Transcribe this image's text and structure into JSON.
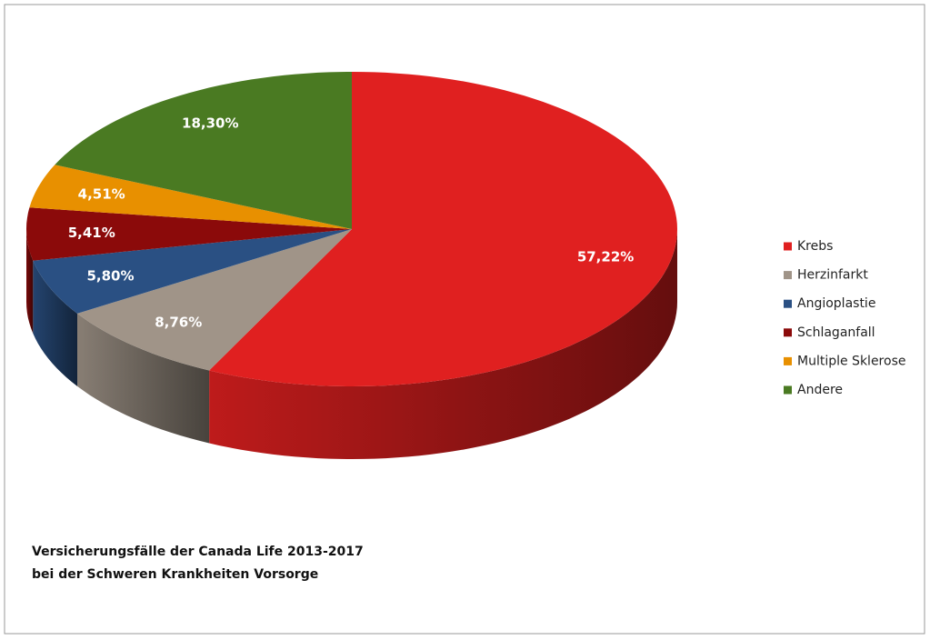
{
  "chart_data": {
    "type": "pie3d",
    "title": [
      "Versicherungsfälle der Canada Life 2013-2017",
      "bei der Schweren Krankheiten Vorsorge"
    ],
    "categories": [
      "Krebs",
      "Herzinfarkt",
      "Angioplastie",
      "Schlaganfall",
      "Multiple Sklerose",
      "Andere"
    ],
    "values": [
      57.22,
      8.76,
      5.8,
      5.41,
      4.51,
      18.3
    ],
    "value_labels": [
      "57,22%",
      "8,76%",
      "5,80%",
      "5,41%",
      "4,51%",
      "18,30%"
    ],
    "colors": [
      "#e02020",
      "#a09488",
      "#2a5083",
      "#8b0a0a",
      "#e89000",
      "#4a7a22"
    ],
    "legend": "right"
  }
}
